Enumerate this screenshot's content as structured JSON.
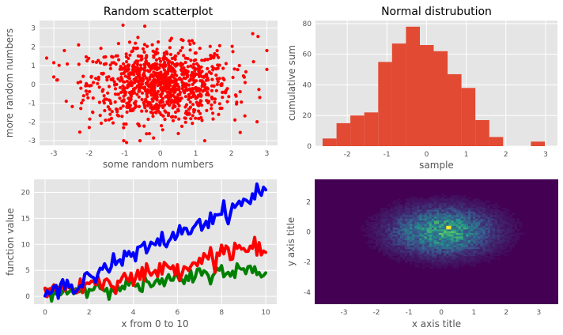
{
  "colors": {
    "plot_bg": "#e5e5e5",
    "grid": "#ffffff",
    "text": "#555555",
    "title": "#000000",
    "scatter": "#ff0000",
    "bars": "#e24a33",
    "line_blue": "#0000ff",
    "line_red": "#ff0000",
    "line_green": "#008000",
    "heat_low": "#440154"
  },
  "chart_data": [
    {
      "type": "scatter",
      "title": "Random scatterplot",
      "xlabel": "some random numbers",
      "ylabel": "more random numbers",
      "xlim": [
        -3.4,
        3.3
      ],
      "ylim": [
        -3.25,
        3.4
      ],
      "xticks": [
        -3,
        -2,
        -1,
        0,
        1,
        2,
        3
      ],
      "yticks": [
        -3,
        -2,
        -1,
        0,
        1,
        2,
        3
      ],
      "grid": true,
      "n_points": 1000,
      "distribution": "standard normal x and y",
      "outliers": [
        {
          "x": -3.2,
          "y": 1.4
        },
        {
          "x": 3.0,
          "y": 1.8
        },
        {
          "x": 2.6,
          "y": 2.7
        },
        {
          "x": 2.75,
          "y": 2.55
        },
        {
          "x": 2.8,
          "y": -0.7
        },
        {
          "x": -1.05,
          "y": 3.15
        },
        {
          "x": -2.3,
          "y": 2.1
        },
        {
          "x": -2.7,
          "y": 1.8
        },
        {
          "x": 1.25,
          "y": -3.0
        },
        {
          "x": -0.95,
          "y": -3.1
        },
        {
          "x": 2.1,
          "y": -1.9
        },
        {
          "x": -2.0,
          "y": -2.3
        }
      ]
    },
    {
      "type": "bar",
      "title": "Normal distrubution",
      "xlabel": "sample",
      "ylabel": "cumulative sum",
      "xlim": [
        -2.8,
        3.3
      ],
      "ylim": [
        0,
        82
      ],
      "xticks": [
        -2,
        -1,
        0,
        1,
        2,
        3
      ],
      "yticks": [
        0,
        20,
        40,
        60,
        80
      ],
      "grid": true,
      "bin_edges": [
        -2.62,
        -2.27,
        -1.92,
        -1.57,
        -1.22,
        -0.87,
        -0.52,
        -0.17,
        0.18,
        0.53,
        0.88,
        1.23,
        1.58,
        1.93,
        2.28,
        2.63,
        2.98,
        3.33
      ],
      "values": [
        5,
        15,
        20,
        22,
        55,
        67,
        78,
        66,
        62,
        47,
        38,
        17,
        6,
        0,
        0,
        3,
        0
      ]
    },
    {
      "type": "line",
      "title": "",
      "xlabel": "x from 0 to 10",
      "ylabel": "function value",
      "xlim": [
        -0.5,
        10.5
      ],
      "ylim": [
        -1.5,
        22.5
      ],
      "xticks": [
        0,
        2,
        4,
        6,
        8,
        10
      ],
      "yticks": [
        0,
        5,
        10,
        15,
        20
      ],
      "grid": true,
      "series": [
        {
          "color_key": "line_blue",
          "trend": "2*x",
          "x": [
            0,
            1,
            2,
            3,
            4,
            5,
            6,
            7,
            8,
            9,
            10
          ],
          "values": [
            0,
            2,
            4,
            6,
            8,
            10,
            12,
            14,
            16,
            18,
            21
          ]
        },
        {
          "color_key": "line_red",
          "trend": "x",
          "x": [
            0,
            1,
            2,
            3,
            4,
            5,
            6,
            7,
            8,
            9,
            10
          ],
          "values": [
            2,
            1.5,
            2.5,
            3,
            3.5,
            5,
            5.5,
            7,
            8.5,
            9.5,
            8.5
          ]
        },
        {
          "color_key": "line_green",
          "trend": "0.5*x",
          "x": [
            0,
            1,
            2,
            3,
            4,
            5,
            6,
            7,
            8,
            9,
            10
          ],
          "values": [
            1,
            1,
            1.5,
            2,
            2,
            2.5,
            3,
            4,
            5,
            5,
            4
          ]
        }
      ]
    },
    {
      "type": "heatmap",
      "title": "",
      "xlabel": "x axis title",
      "ylabel": "y axis title",
      "xlim": [
        -3.9,
        3.6
      ],
      "ylim": [
        -4.8,
        3.5
      ],
      "xticks": [
        -3,
        -2,
        -1,
        0,
        1,
        2,
        3
      ],
      "yticks": [
        -4,
        -2,
        0,
        2
      ],
      "grid": false,
      "distribution": "2D histogram of standard normal x and y",
      "colormap": "viridis",
      "peak": {
        "x": 0.2,
        "y": 0.3
      }
    }
  ]
}
